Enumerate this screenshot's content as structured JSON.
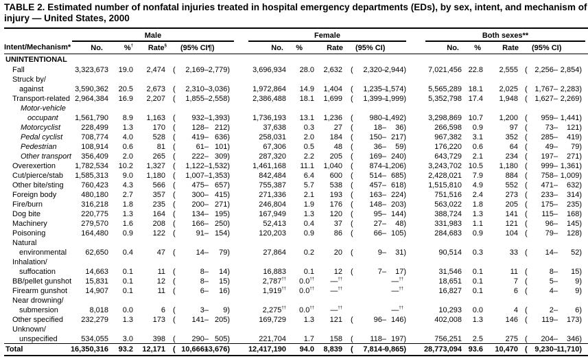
{
  "title": "TABLE 2. Estimated number of nonfatal injuries treated in hospital emergency departments (EDs), by sex, intent, and mechanism of injury — United States, 2000",
  "groups": {
    "male": "Male",
    "female": "Female",
    "both": "Both sexes**"
  },
  "headers": {
    "intent": "Intent/Mechanism*",
    "male": [
      "No.",
      "%†",
      "Rate§",
      "(95% CI¶)"
    ],
    "female": [
      "No.",
      "%",
      "Rate",
      "(95% CI)"
    ],
    "both": [
      "No.",
      "%",
      "Rate",
      "(95% CI)"
    ]
  },
  "section": "UNINTENTIONAL",
  "rows": [
    {
      "label": [
        "Fall"
      ],
      "level": 1,
      "male": [
        "3,323,673",
        "19.0",
        "2,474",
        "2,169",
        "2,779"
      ],
      "female": [
        "3,696,934",
        "28.0",
        "2,632",
        "2,320",
        "2,944"
      ],
      "both": [
        "7,021,456",
        "22.8",
        "2,555",
        "2,256",
        "2,854"
      ]
    },
    {
      "label": [
        "Struck by/",
        "against"
      ],
      "level": 1,
      "male": [
        "3,590,362",
        "20.5",
        "2,673",
        "2,310",
        "3,036"
      ],
      "female": [
        "1,972,864",
        "14.9",
        "1,404",
        "1,235",
        "1,574"
      ],
      "both": [
        "5,565,289",
        "18.1",
        "2,025",
        "1,767",
        "2,283"
      ]
    },
    {
      "label": [
        "Transport-related"
      ],
      "level": 1,
      "male": [
        "2,964,384",
        "16.9",
        "2,207",
        "1,855",
        "2,558"
      ],
      "female": [
        "2,386,488",
        "18.1",
        "1,699",
        "1,399",
        "1,999"
      ],
      "both": [
        "5,352,798",
        "17.4",
        "1,948",
        "1,627",
        "2,269"
      ]
    },
    {
      "label": [
        "Motor-vehicle",
        "occupant"
      ],
      "level": 2,
      "male": [
        "1,561,790",
        "8.9",
        "1,163",
        "932",
        "1,393"
      ],
      "female": [
        "1,736,193",
        "13.1",
        "1,236",
        "980",
        "1,492"
      ],
      "both": [
        "3,298,869",
        "10.7",
        "1,200",
        "959",
        "1,441"
      ]
    },
    {
      "label": [
        "Motorcyclist"
      ],
      "level": 2,
      "male": [
        "228,499",
        "1.3",
        "170",
        "128",
        "212"
      ],
      "female": [
        "37,638",
        "0.3",
        "27",
        "18",
        "36"
      ],
      "both": [
        "266,598",
        "0.9",
        "97",
        "73",
        "121"
      ]
    },
    {
      "label": [
        "Pedal cyclist"
      ],
      "level": 2,
      "male": [
        "708,774",
        "4.0",
        "528",
        "419",
        "636"
      ],
      "female": [
        "258,031",
        "2.0",
        "184",
        "150",
        "217"
      ],
      "both": [
        "967,382",
        "3.1",
        "352",
        "285",
        "419"
      ]
    },
    {
      "label": [
        "Pedestrian"
      ],
      "level": 2,
      "male": [
        "108,914",
        "0.6",
        "81",
        "61",
        "101"
      ],
      "female": [
        "67,306",
        "0.5",
        "48",
        "36",
        "59"
      ],
      "both": [
        "176,220",
        "0.6",
        "64",
        "49",
        "79"
      ]
    },
    {
      "label": [
        "Other transport"
      ],
      "level": 2,
      "male": [
        "356,409",
        "2.0",
        "265",
        "222",
        "309"
      ],
      "female": [
        "287,320",
        "2.2",
        "205",
        "169",
        "240"
      ],
      "both": [
        "643,729",
        "2.1",
        "234",
        "197",
        "271"
      ]
    },
    {
      "label": [
        "Overexertion"
      ],
      "level": 1,
      "male": [
        "1,782,534",
        "10.2",
        "1,327",
        "1,122",
        "1,532"
      ],
      "female": [
        "1,461,168",
        "11.1",
        "1,040",
        "874",
        "1,206"
      ],
      "both": [
        "3,243,702",
        "10.5",
        "1,180",
        "999",
        "1,361"
      ]
    },
    {
      "label": [
        "Cut/pierce/stab"
      ],
      "level": 1,
      "male": [
        "1,585,313",
        "9.0",
        "1,180",
        "1,007",
        "1,353"
      ],
      "female": [
        "842,484",
        "6.4",
        "600",
        "514",
        "685"
      ],
      "both": [
        "2,428,021",
        "7.9",
        "884",
        "758",
        "1,009"
      ]
    },
    {
      "label": [
        "Other bite/sting"
      ],
      "level": 1,
      "male": [
        "760,423",
        "4.3",
        "566",
        "475",
        "657"
      ],
      "female": [
        "755,387",
        "5.7",
        "538",
        "457",
        "618"
      ],
      "both": [
        "1,515,810",
        "4.9",
        "552",
        "471",
        "632"
      ]
    },
    {
      "label": [
        "Foreign body"
      ],
      "level": 1,
      "male": [
        "480,180",
        "2.7",
        "357",
        "300",
        "415"
      ],
      "female": [
        "271,336",
        "2.1",
        "193",
        "163",
        "224"
      ],
      "both": [
        "751,516",
        "2.4",
        "273",
        "233",
        "314"
      ]
    },
    {
      "label": [
        "Fire/burn"
      ],
      "level": 1,
      "male": [
        "316,218",
        "1.8",
        "235",
        "200",
        "271"
      ],
      "female": [
        "246,804",
        "1.9",
        "176",
        "148",
        "203"
      ],
      "both": [
        "563,022",
        "1.8",
        "205",
        "175",
        "235"
      ]
    },
    {
      "label": [
        "Dog bite"
      ],
      "level": 1,
      "male": [
        "220,775",
        "1.3",
        "164",
        "134",
        "195"
      ],
      "female": [
        "167,949",
        "1.3",
        "120",
        "95",
        "144"
      ],
      "both": [
        "388,724",
        "1.3",
        "141",
        "115",
        "168"
      ]
    },
    {
      "label": [
        "Machinery"
      ],
      "level": 1,
      "male": [
        "279,570",
        "1.6",
        "208",
        "166",
        "250"
      ],
      "female": [
        "52,413",
        "0.4",
        "37",
        "27",
        "48"
      ],
      "both": [
        "331,983",
        "1.1",
        "121",
        "96",
        "145"
      ]
    },
    {
      "label": [
        "Poisoning"
      ],
      "level": 1,
      "male": [
        "164,480",
        "0.9",
        "122",
        "91",
        "154"
      ],
      "female": [
        "120,203",
        "0.9",
        "86",
        "66",
        "105"
      ],
      "both": [
        "284,683",
        "0.9",
        "104",
        "79",
        "128"
      ]
    },
    {
      "label": [
        "Natural",
        "environmental"
      ],
      "level": 1,
      "male": [
        "62,650",
        "0.4",
        "47",
        "14",
        "79"
      ],
      "female": [
        "27,864",
        "0.2",
        "20",
        "9",
        "31"
      ],
      "both": [
        "90,514",
        "0.3",
        "33",
        "14",
        "52"
      ]
    },
    {
      "label": [
        "Inhalation/",
        "suffocation"
      ],
      "level": 1,
      "male": [
        "14,663",
        "0.1",
        "11",
        "8",
        "14"
      ],
      "female": [
        "16,883",
        "0.1",
        "12",
        "7",
        "17"
      ],
      "both": [
        "31,546",
        "0.1",
        "11",
        "8",
        "15"
      ]
    },
    {
      "label": [
        "BB/pellet gunshot"
      ],
      "level": 1,
      "male": [
        "15,831",
        "0.1",
        "12",
        "8",
        "15"
      ],
      "female": [
        "2,787††",
        "0.0††",
        "—††",
        null,
        "—††"
      ],
      "both": [
        "18,651",
        "0.1",
        "7",
        "5",
        "9"
      ]
    },
    {
      "label": [
        "Firearm gunshot"
      ],
      "level": 1,
      "male": [
        "14,907",
        "0.1",
        "11",
        "6",
        "16"
      ],
      "female": [
        "1,919††",
        "0.0††",
        "—††",
        null,
        "—††"
      ],
      "both": [
        "16,827",
        "0.1",
        "6",
        "4",
        "9"
      ]
    },
    {
      "label": [
        "Near drowning/",
        "submersion"
      ],
      "level": 1,
      "male": [
        "8,018",
        "0.0",
        "6",
        "3",
        "9"
      ],
      "female": [
        "2,275††",
        "0.0††",
        "—††",
        null,
        "—††"
      ],
      "both": [
        "10,293",
        "0.0",
        "4",
        "2",
        "6"
      ]
    },
    {
      "label": [
        "Other specified"
      ],
      "level": 1,
      "male": [
        "232,279",
        "1.3",
        "173",
        "141",
        "205"
      ],
      "female": [
        "169,729",
        "1.3",
        "121",
        "96",
        "146"
      ],
      "both": [
        "402,008",
        "1.3",
        "146",
        "119",
        "173"
      ]
    },
    {
      "label": [
        "Unknown/",
        "unspecified"
      ],
      "level": 1,
      "male": [
        "534,055",
        "3.0",
        "398",
        "290",
        "505"
      ],
      "female": [
        "221,704",
        "1.7",
        "158",
        "118",
        "197"
      ],
      "both": [
        "756,251",
        "2.5",
        "275",
        "204",
        "346"
      ]
    }
  ],
  "total": {
    "label": "Total",
    "male": [
      "16,350,316",
      "93.2",
      "12,171",
      "10,666",
      "13,676"
    ],
    "female": [
      "12,417,190",
      "94.0",
      "8,839",
      "7,814",
      "9,865"
    ],
    "both": [
      "28,773,094",
      "93.6",
      "10,470",
      "9,230",
      "11,710"
    ]
  }
}
